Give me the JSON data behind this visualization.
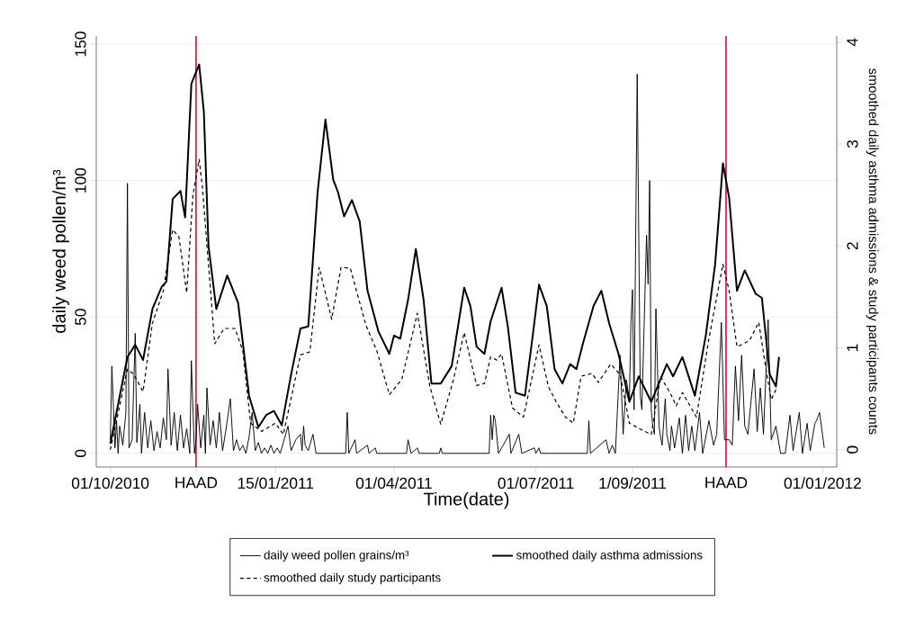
{
  "chart_data": {
    "type": "line",
    "xlabel": "Time(date)",
    "ylabel": "daily weed pollen/m³",
    "y2label": "smoothed daily asthma admissions & study participants counts",
    "xlim": [
      "2010-09-22",
      "2012-01-10"
    ],
    "xticks": [
      {
        "value": "2010-10-01",
        "label": "01/10/2010"
      },
      {
        "value": "2010-11-25",
        "label": "HAAD"
      },
      {
        "value": "2011-01-15",
        "label": "15/01/2011"
      },
      {
        "value": "2011-04-01",
        "label": "01/04/2011"
      },
      {
        "value": "2011-07-01",
        "label": "01/07/2011"
      },
      {
        "value": "2011-09-01",
        "label": "1/09/2011"
      },
      {
        "value": "2011-10-31",
        "label": "HAAD"
      },
      {
        "value": "2012-01-01",
        "label": "01/01/2012"
      }
    ],
    "ylim": [
      -5,
      153
    ],
    "yticks": [
      0,
      50,
      100,
      150
    ],
    "y2lim": [
      -0.17,
      4.06
    ],
    "y2ticks": [
      0,
      1,
      2,
      3,
      4
    ],
    "grid": "y",
    "legend": "bottom",
    "marker": "none",
    "ref_lines": [
      {
        "axis": "x",
        "value": "2010-11-25",
        "color": "#c8102e"
      },
      {
        "axis": "x",
        "value": "2011-10-31",
        "color": "#c8102e"
      }
    ],
    "series": [
      {
        "name": "daily weed pollen grains/m³",
        "color": "#000000",
        "line_style": "solid",
        "x": [
          "2010-10-01",
          "2010-10-02",
          "2010-10-04",
          "2010-10-05",
          "2010-10-06",
          "2010-10-07",
          "2010-10-09",
          "2010-10-11",
          "2010-10-12",
          "2010-10-13",
          "2010-10-15",
          "2010-10-17",
          "2010-10-18",
          "2010-10-20",
          "2010-10-21",
          "2010-10-23",
          "2010-10-25",
          "2010-10-27",
          "2010-10-29",
          "2010-10-31",
          "2010-11-02",
          "2010-11-04",
          "2010-11-06",
          "2010-11-07",
          "2010-11-09",
          "2010-11-11",
          "2010-11-13",
          "2010-11-15",
          "2010-11-17",
          "2010-11-19",
          "2010-11-21",
          "2010-11-22",
          "2010-11-24",
          "2010-11-25",
          "2010-11-26",
          "2010-11-28",
          "2010-11-30",
          "2010-12-01",
          "2010-12-02",
          "2010-12-04",
          "2010-12-06",
          "2010-12-08",
          "2010-12-10",
          "2010-12-12",
          "2010-12-14",
          "2010-12-17",
          "2010-12-19",
          "2010-12-21",
          "2010-12-23",
          "2010-12-25",
          "2010-12-27",
          "2010-12-29",
          "2010-12-31",
          "2011-01-02",
          "2011-01-04",
          "2011-01-06",
          "2011-01-08",
          "2011-01-10",
          "2011-01-12",
          "2011-01-14",
          "2011-01-16",
          "2011-01-18",
          "2011-01-20",
          "2011-01-23",
          "2011-01-25",
          "2011-01-28",
          "2011-01-31",
          "2011-02-01",
          "2011-02-02",
          "2011-02-03",
          "2011-02-05",
          "2011-02-06",
          "2011-02-08",
          "2011-02-10",
          "2011-03-01",
          "2011-03-02",
          "2011-03-03",
          "2011-03-07",
          "2011-03-08",
          "2011-03-15",
          "2011-03-16",
          "2011-03-20",
          "2011-03-21",
          "2011-04-09",
          "2011-04-10",
          "2011-04-12",
          "2011-04-16",
          "2011-04-17",
          "2011-04-30",
          "2011-05-01",
          "2011-05-02",
          "2011-06-01",
          "2011-06-02",
          "2011-06-03",
          "2011-06-04",
          "2011-06-05",
          "2011-06-07",
          "2011-06-14",
          "2011-06-15",
          "2011-06-20",
          "2011-06-22",
          "2011-06-30",
          "2011-07-01",
          "2011-07-03",
          "2011-07-04",
          "2011-08-03",
          "2011-08-04",
          "2011-08-05",
          "2011-08-15",
          "2011-08-17",
          "2011-08-19",
          "2011-08-21",
          "2011-08-24",
          "2011-08-26",
          "2011-08-28",
          "2011-08-30",
          "2011-08-31",
          "2011-09-01",
          "2011-09-02",
          "2011-09-04",
          "2011-09-06",
          "2011-09-07",
          "2011-09-10",
          "2011-09-11",
          "2011-09-12",
          "2011-09-13",
          "2011-09-14",
          "2011-09-15",
          "2011-09-16",
          "2011-09-18",
          "2011-09-19",
          "2011-09-20",
          "2011-09-22",
          "2011-09-23",
          "2011-09-25",
          "2011-09-26",
          "2011-09-28",
          "2011-10-01",
          "2011-10-03",
          "2011-10-05",
          "2011-10-07",
          "2011-10-09",
          "2011-10-11",
          "2011-10-14",
          "2011-10-16",
          "2011-10-20",
          "2011-10-23",
          "2011-10-25",
          "2011-10-28",
          "2011-10-30",
          "2011-11-02",
          "2011-11-04",
          "2011-11-06",
          "2011-11-08",
          "2011-11-10",
          "2011-11-12",
          "2011-11-14",
          "2011-11-18",
          "2011-11-20",
          "2011-11-22",
          "2011-11-24",
          "2011-11-27",
          "2011-11-29",
          "2011-12-02",
          "2011-12-05",
          "2011-12-08",
          "2011-12-11",
          "2011-12-13",
          "2011-12-17",
          "2011-12-19",
          "2011-12-22",
          "2011-12-24",
          "2011-12-27",
          "2011-12-28",
          "2011-12-30",
          "2012-01-02"
        ],
        "values": [
          5,
          32,
          2,
          12,
          0,
          10,
          3,
          15,
          99,
          2,
          5,
          44,
          4,
          18,
          0,
          15,
          2,
          12,
          1,
          8,
          2,
          13,
          5,
          31,
          3,
          15,
          1,
          14,
          2,
          9,
          0,
          34,
          0,
          5,
          18,
          2,
          14,
          0,
          24,
          3,
          12,
          2,
          15,
          1,
          8,
          20,
          1,
          5,
          1,
          3,
          0,
          6,
          15,
          1,
          4,
          0,
          2,
          0,
          3,
          0,
          2,
          0,
          4,
          10,
          1,
          5,
          7,
          1,
          10,
          3,
          1,
          3,
          7,
          0,
          0,
          15,
          0,
          5,
          0,
          3,
          0,
          2,
          0,
          0,
          5,
          0,
          2,
          0,
          0,
          2,
          0,
          0,
          14,
          5,
          14,
          12,
          0,
          7,
          0,
          7,
          0,
          2,
          0,
          2,
          0,
          0,
          12,
          0,
          5,
          0,
          3,
          0,
          36,
          7,
          27,
          20,
          48,
          60,
          16,
          139,
          21,
          16,
          80,
          62,
          100,
          16,
          10,
          7,
          53,
          10,
          6,
          3,
          20,
          7,
          1,
          10,
          2,
          13,
          0,
          14,
          1,
          10,
          1,
          15,
          0,
          12,
          3,
          7,
          48,
          5,
          5,
          3,
          32,
          12,
          36,
          10,
          7,
          31,
          8,
          24,
          7,
          49,
          5,
          10,
          0,
          0,
          14,
          1,
          15,
          0,
          11,
          1,
          11,
          12,
          15,
          2
        ]
      },
      {
        "name": "smoothed daily asthma admissions",
        "color": "#000000",
        "line_style": "solid",
        "axis": "y2",
        "x": [
          "2010-10-01",
          "2010-10-12",
          "2010-10-17",
          "2010-10-22",
          "2010-10-28",
          "2010-11-03",
          "2010-11-06",
          "2010-11-10",
          "2010-11-15",
          "2010-11-18",
          "2010-11-22",
          "2010-11-27",
          "2010-11-30",
          "2010-12-03",
          "2010-12-08",
          "2010-12-15",
          "2010-12-22",
          "2010-12-29",
          "2011-01-04",
          "2011-01-09",
          "2011-01-14",
          "2011-01-19",
          "2011-01-25",
          "2011-01-31",
          "2011-02-05",
          "2011-02-11",
          "2011-02-16",
          "2011-02-21",
          "2011-02-24",
          "2011-02-28",
          "2011-03-05",
          "2011-03-10",
          "2011-03-15",
          "2011-03-22",
          "2011-03-29",
          "2011-04-01",
          "2011-04-05",
          "2011-04-10",
          "2011-04-15",
          "2011-04-20",
          "2011-04-25",
          "2011-05-01",
          "2011-05-08",
          "2011-05-16",
          "2011-05-20",
          "2011-05-24",
          "2011-05-29",
          "2011-06-02",
          "2011-06-09",
          "2011-06-13",
          "2011-06-18",
          "2011-06-24",
          "2011-06-29",
          "2011-07-03",
          "2011-07-08",
          "2011-07-13",
          "2011-07-18",
          "2011-07-23",
          "2011-07-27",
          "2011-07-31",
          "2011-08-07",
          "2011-08-12",
          "2011-08-17",
          "2011-08-23",
          "2011-08-30",
          "2011-09-05",
          "2011-09-13",
          "2011-09-23",
          "2011-09-27",
          "2011-10-03",
          "2011-10-11",
          "2011-10-18",
          "2011-10-24",
          "2011-10-29",
          "2011-11-02",
          "2011-11-07",
          "2011-11-12",
          "2011-11-19",
          "2011-11-23",
          "2011-11-28",
          "2011-12-02",
          "2011-12-04"
        ],
        "values": [
          0.06,
          0.91,
          1.03,
          0.88,
          1.38,
          1.6,
          1.65,
          2.46,
          2.54,
          2.28,
          3.59,
          3.78,
          3.32,
          2.0,
          1.38,
          1.71,
          1.44,
          0.53,
          0.22,
          0.34,
          0.38,
          0.24,
          0.74,
          1.19,
          1.21,
          2.53,
          3.24,
          2.65,
          2.53,
          2.29,
          2.45,
          2.24,
          1.56,
          1.16,
          0.94,
          1.12,
          1.09,
          1.47,
          1.97,
          1.47,
          0.65,
          0.65,
          0.82,
          1.59,
          1.41,
          1.01,
          0.94,
          1.26,
          1.59,
          1.21,
          0.56,
          0.53,
          1.12,
          1.62,
          1.41,
          0.79,
          0.65,
          0.84,
          0.79,
          1.03,
          1.41,
          1.56,
          1.24,
          0.94,
          0.47,
          0.72,
          0.47,
          0.84,
          0.72,
          0.91,
          0.53,
          1.12,
          1.82,
          2.81,
          2.47,
          1.56,
          1.76,
          1.53,
          1.49,
          0.74,
          0.62,
          0.91
        ]
      },
      {
        "name": "smoothed daily study participants",
        "color": "#000000",
        "line_style": "dashed",
        "axis": "y2",
        "x": [
          "2010-10-01",
          "2010-10-12",
          "2010-10-16",
          "2010-10-22",
          "2010-10-28",
          "2010-11-04",
          "2010-11-10",
          "2010-11-14",
          "2010-11-19",
          "2010-11-23",
          "2010-11-27",
          "2010-11-29",
          "2010-12-07",
          "2010-12-13",
          "2010-12-20",
          "2010-12-25",
          "2010-12-30",
          "2011-01-06",
          "2011-01-15",
          "2011-01-20",
          "2011-01-29",
          "2011-01-31",
          "2011-02-06",
          "2011-02-12",
          "2011-02-20",
          "2011-02-26",
          "2011-03-04",
          "2011-03-14",
          "2011-03-21",
          "2011-03-29",
          "2011-04-06",
          "2011-04-16",
          "2011-04-24",
          "2011-05-01",
          "2011-05-09",
          "2011-05-16",
          "2011-05-24",
          "2011-05-29",
          "2011-06-02",
          "2011-06-06",
          "2011-06-09",
          "2011-06-16",
          "2011-06-23",
          "2011-06-29",
          "2011-07-03",
          "2011-07-09",
          "2011-07-14",
          "2011-07-20",
          "2011-07-25",
          "2011-07-30",
          "2011-08-06",
          "2011-08-10",
          "2011-08-18",
          "2011-08-24",
          "2011-08-30",
          "2011-09-05",
          "2011-09-13",
          "2011-09-19",
          "2011-09-26",
          "2011-09-29",
          "2011-10-03",
          "2011-10-12",
          "2011-10-20",
          "2011-10-29",
          "2011-11-02",
          "2011-11-07",
          "2011-11-15",
          "2011-11-21",
          "2011-11-25",
          "2011-11-29",
          "2011-12-02"
        ],
        "values": [
          0,
          0.79,
          0.74,
          0.57,
          1.24,
          1.56,
          2.16,
          2.09,
          1.54,
          2.5,
          2.85,
          2.59,
          1.04,
          1.19,
          1.19,
          0.97,
          0.26,
          0.18,
          0.26,
          0.15,
          0.79,
          0.93,
          0.96,
          1.79,
          1.28,
          1.79,
          1.78,
          1.22,
          0.97,
          0.54,
          0.69,
          1.34,
          0.62,
          0.25,
          0.68,
          1.15,
          0.63,
          0.65,
          0.91,
          0.88,
          0.94,
          0.41,
          0.32,
          0.74,
          1.03,
          0.62,
          0.47,
          0.32,
          0.26,
          0.72,
          0.75,
          0.66,
          0.84,
          0.74,
          0.26,
          0.21,
          0.15,
          0.72,
          0.53,
          0.43,
          0.56,
          0.32,
          1.09,
          1.82,
          1.56,
          1.01,
          1.07,
          1.25,
          0.85,
          0.49,
          0.59
        ]
      }
    ]
  }
}
